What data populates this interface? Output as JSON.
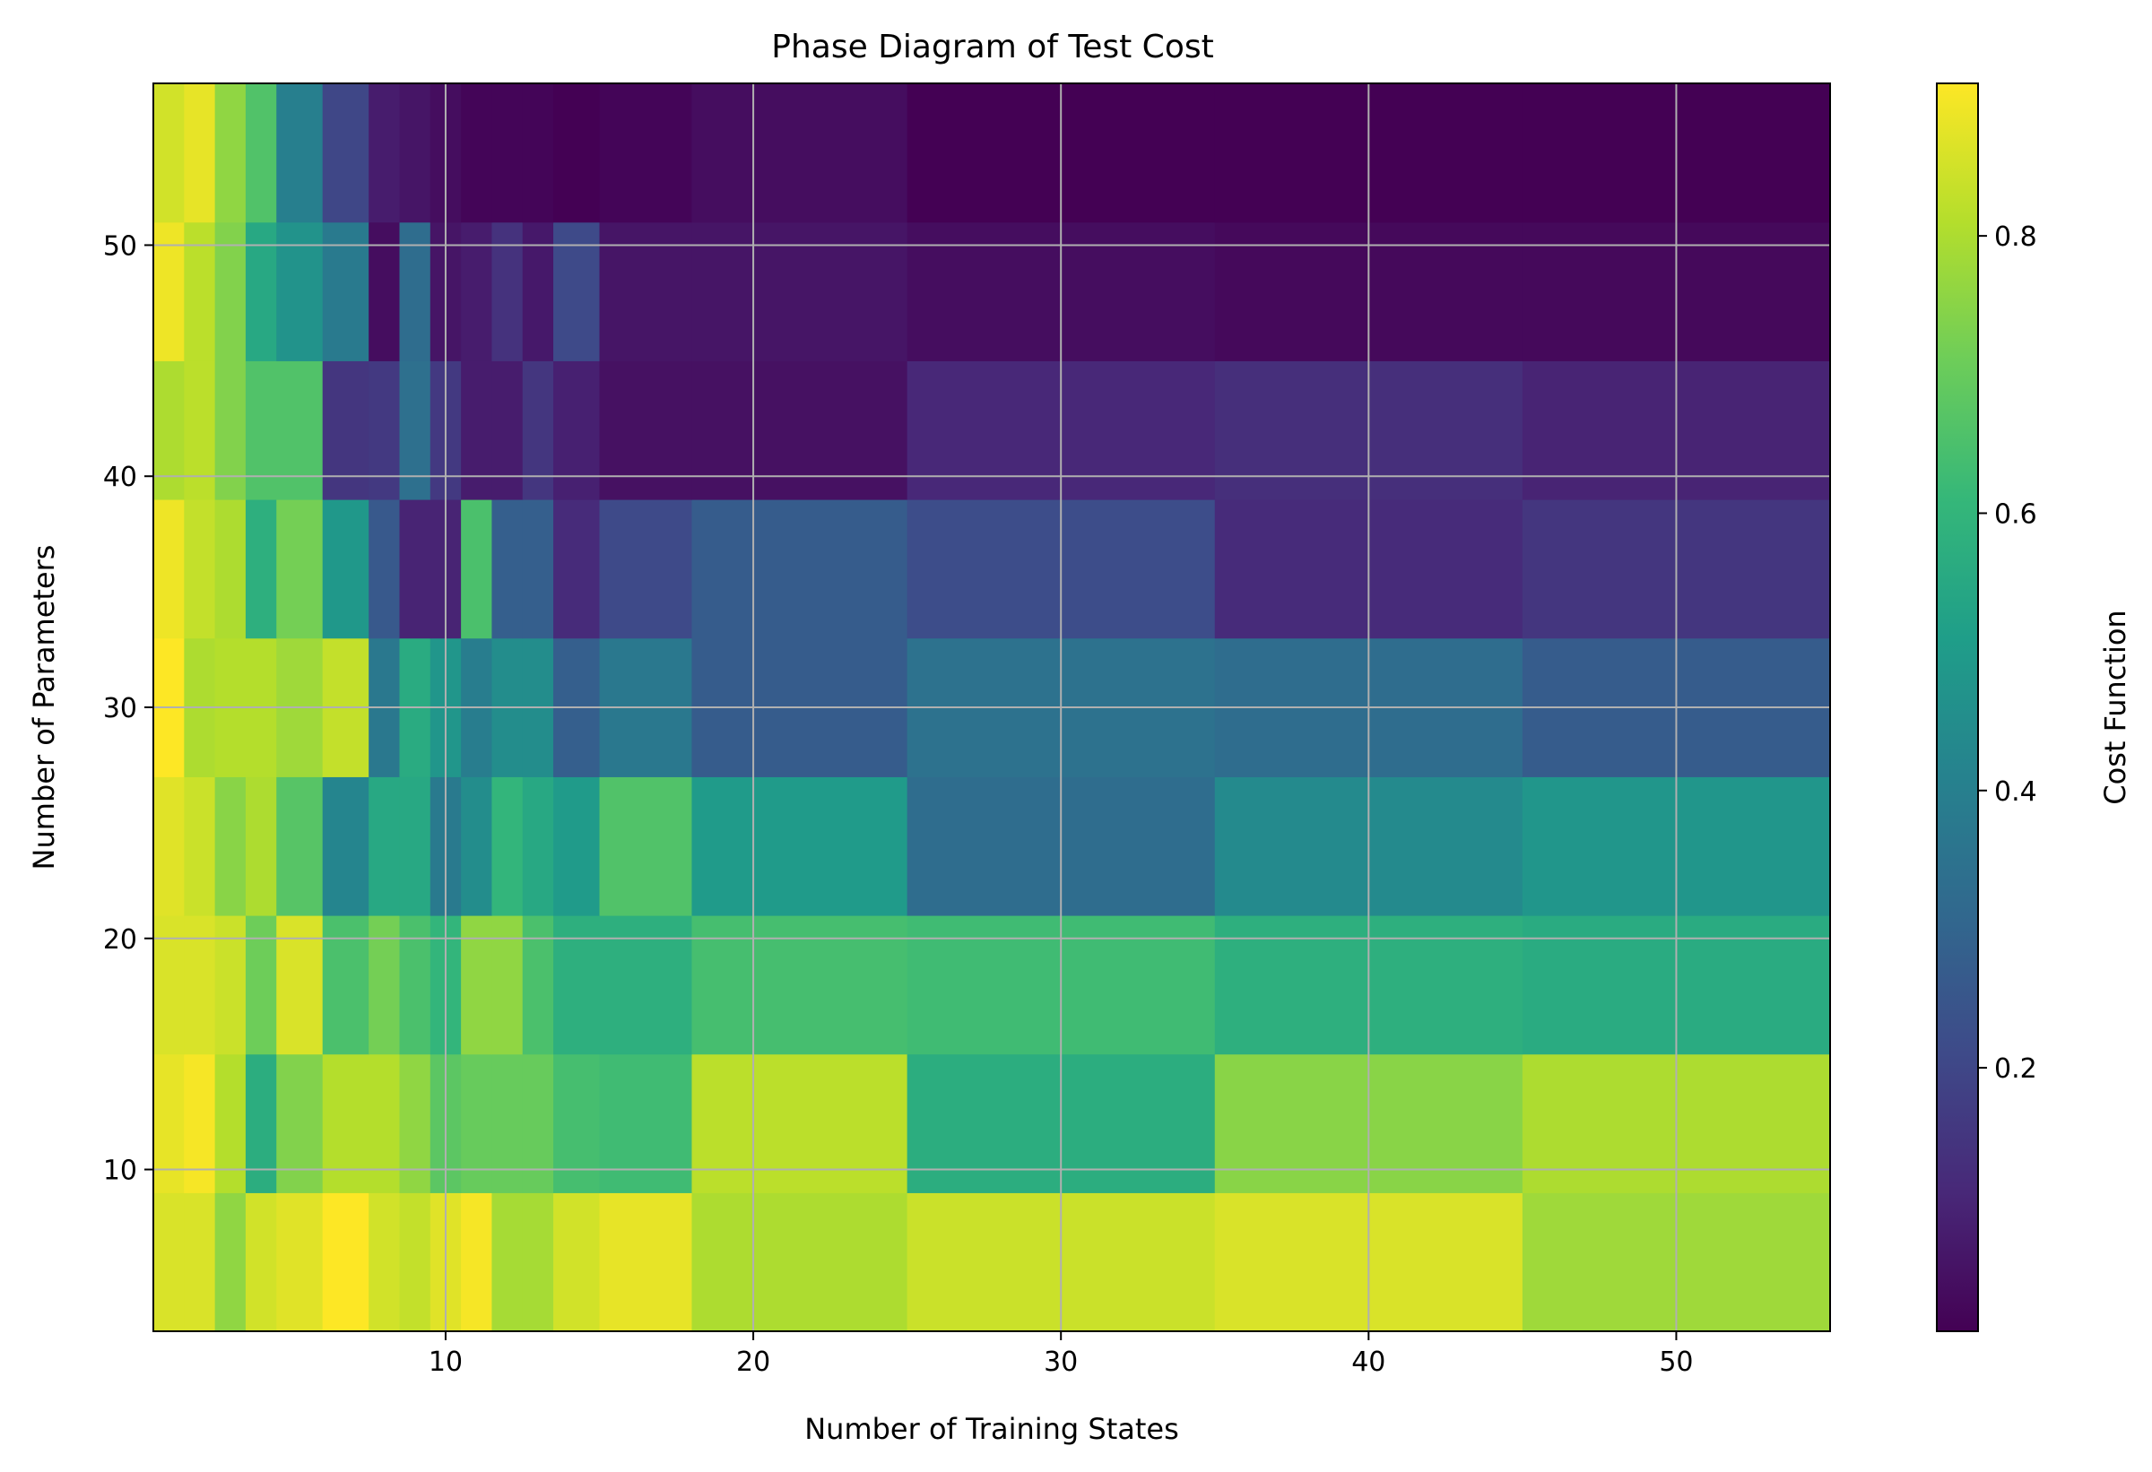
{
  "chart_data": {
    "type": "heatmap",
    "title": "Phase Diagram of Test Cost",
    "xlabel": "Number of Training States",
    "ylabel": "Number of Parameters",
    "colorbar_label": "Cost Function",
    "colormap": "viridis",
    "grid": true,
    "xlim": [
      0.5,
      55
    ],
    "ylim": [
      3,
      57
    ],
    "clim": [
      0.01,
      0.91
    ],
    "x_ticks": [
      10,
      20,
      30,
      40,
      50
    ],
    "y_ticks": [
      10,
      20,
      30,
      40,
      50
    ],
    "colorbar_ticks": [
      0.2,
      0.4,
      0.6,
      0.8
    ],
    "x": [
      1,
      2,
      3,
      4,
      5,
      7,
      8,
      9,
      10,
      11,
      12,
      13,
      14,
      16,
      20,
      30,
      40,
      50
    ],
    "y": [
      6,
      12,
      18,
      24,
      30,
      36,
      42,
      48,
      54
    ],
    "values": [
      [
        0.86,
        0.86,
        0.76,
        0.85,
        0.87,
        0.91,
        0.85,
        0.83,
        0.87,
        0.9,
        0.79,
        0.79,
        0.85,
        0.88,
        0.8,
        0.84,
        0.86,
        0.78
      ],
      [
        0.88,
        0.9,
        0.81,
        0.57,
        0.74,
        0.81,
        0.81,
        0.76,
        0.68,
        0.7,
        0.7,
        0.7,
        0.64,
        0.63,
        0.82,
        0.57,
        0.75,
        0.8
      ],
      [
        0.86,
        0.86,
        0.84,
        0.71,
        0.86,
        0.65,
        0.72,
        0.65,
        0.6,
        0.76,
        0.76,
        0.65,
        0.58,
        0.58,
        0.64,
        0.63,
        0.58,
        0.56
      ],
      [
        0.87,
        0.84,
        0.75,
        0.8,
        0.67,
        0.42,
        0.55,
        0.55,
        0.38,
        0.45,
        0.6,
        0.55,
        0.5,
        0.66,
        0.5,
        0.33,
        0.44,
        0.48
      ],
      [
        0.91,
        0.8,
        0.81,
        0.81,
        0.78,
        0.83,
        0.37,
        0.56,
        0.48,
        0.39,
        0.45,
        0.45,
        0.28,
        0.37,
        0.27,
        0.35,
        0.33,
        0.27
      ],
      [
        0.89,
        0.83,
        0.8,
        0.58,
        0.72,
        0.49,
        0.26,
        0.1,
        0.1,
        0.65,
        0.28,
        0.28,
        0.12,
        0.21,
        0.27,
        0.22,
        0.12,
        0.15
      ],
      [
        0.8,
        0.82,
        0.74,
        0.66,
        0.66,
        0.15,
        0.16,
        0.34,
        0.16,
        0.08,
        0.08,
        0.15,
        0.09,
        0.05,
        0.05,
        0.11,
        0.13,
        0.1
      ],
      [
        0.89,
        0.82,
        0.74,
        0.55,
        0.47,
        0.38,
        0.04,
        0.33,
        0.06,
        0.08,
        0.14,
        0.07,
        0.21,
        0.06,
        0.06,
        0.04,
        0.03,
        0.03
      ],
      [
        0.85,
        0.88,
        0.76,
        0.66,
        0.4,
        0.2,
        0.08,
        0.06,
        0.04,
        0.02,
        0.02,
        0.02,
        0.01,
        0.02,
        0.04,
        0.01,
        0.01,
        0.01
      ]
    ]
  }
}
